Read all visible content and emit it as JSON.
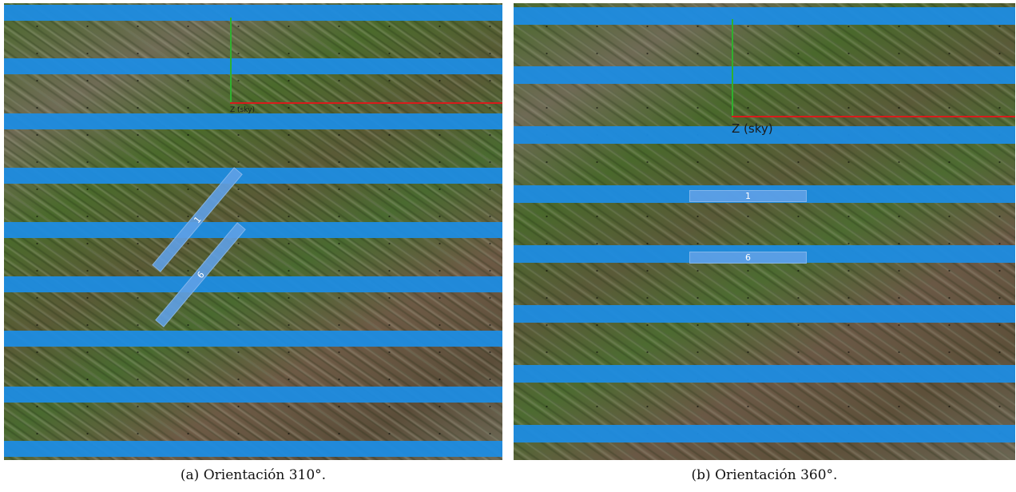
{
  "panels": [
    {
      "axis_label": "Z (sky)",
      "trackers": [
        "1",
        "6"
      ],
      "caption": "(a) Orientación 310°."
    },
    {
      "axis_label": "Z (sky)",
      "trackers": [
        "1",
        "6"
      ],
      "caption": "(b) Orientación 360°."
    }
  ],
  "colors": {
    "row_stripe": "#1e8ce1",
    "tracker": "#5fa0e6",
    "axis_y": "#2fb02f",
    "axis_x": "#d91b1b"
  },
  "icons": {
    "axis_gizmo": "axis-gizmo-icon"
  }
}
